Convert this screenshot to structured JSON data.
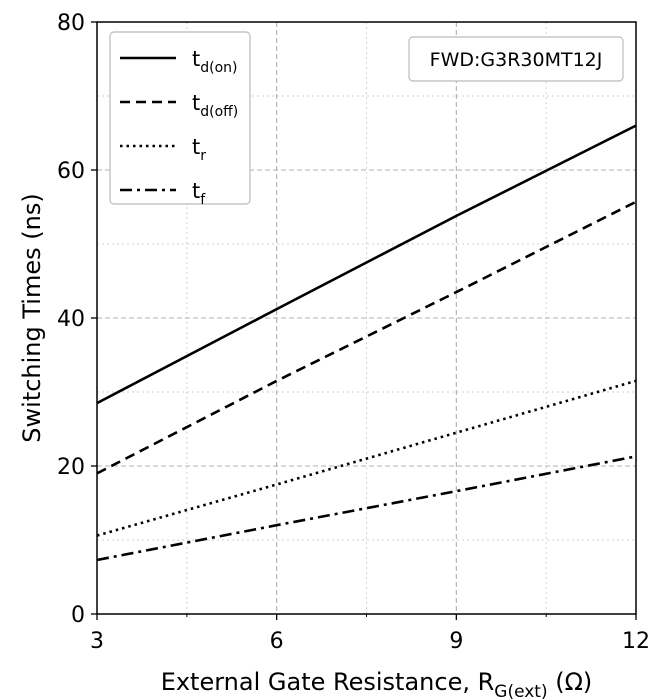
{
  "chart_data": {
    "type": "line",
    "title": "",
    "xlabel": {
      "main": "External Gate Resistance, R",
      "sub": "G(ext)",
      "unit": " (Ω)"
    },
    "ylabel": "Switching Times (ns)",
    "xlim": [
      3,
      12
    ],
    "ylim": [
      0,
      80
    ],
    "xticks": [
      3,
      6,
      9,
      12
    ],
    "yticks": [
      0,
      20,
      40,
      60,
      80
    ],
    "grid": true,
    "legend_position": "top-left",
    "annotation": "FWD:G3R30MT12J",
    "series": [
      {
        "name": "t",
        "sub": "d(on)",
        "style": "solid",
        "x": [
          3,
          6,
          9,
          12
        ],
        "y": [
          28.5,
          41.2,
          53.8,
          66.0
        ]
      },
      {
        "name": "t",
        "sub": "d(off)",
        "style": "dashed",
        "x": [
          3,
          6,
          9,
          12
        ],
        "y": [
          19.0,
          31.5,
          43.5,
          55.7
        ]
      },
      {
        "name": "t",
        "sub": "r",
        "style": "dotted",
        "x": [
          3,
          6,
          9,
          12
        ],
        "y": [
          10.6,
          17.5,
          24.5,
          31.5
        ]
      },
      {
        "name": "t",
        "sub": "f",
        "style": "dashdot",
        "x": [
          3,
          6,
          9,
          12
        ],
        "y": [
          7.3,
          12.0,
          16.6,
          21.3
        ]
      }
    ]
  }
}
